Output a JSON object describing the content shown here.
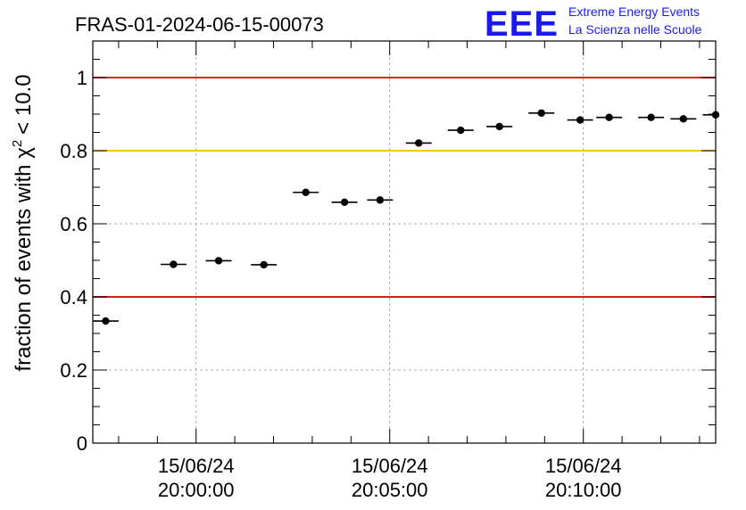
{
  "chart_data": {
    "type": "scatter",
    "title": "FRAS-01-2024-06-15-00073",
    "ylabel": "fraction of events with",
    "ylabel_chi": "χ",
    "ylabel_exp": "2",
    "ylabel_tail": "< 10.0",
    "ylim": [
      0,
      1.1
    ],
    "yticks": [
      0,
      0.2,
      0.4,
      0.6,
      0.8,
      1
    ],
    "ytick_labels": [
      "0",
      "0.2",
      "0.4",
      "0.6",
      "0.8",
      "1"
    ],
    "xlim": [
      "15/06/24 19:57:20",
      "15/06/24 20:13:25"
    ],
    "xticks": [
      {
        "x": "15/06/24 20:00:00",
        "date": "15/06/24",
        "time": "20:00:00"
      },
      {
        "x": "15/06/24 20:05:00",
        "date": "15/06/24",
        "time": "20:05:00"
      },
      {
        "x": "15/06/24 20:10:00",
        "date": "15/06/24",
        "time": "20:10:00"
      }
    ],
    "grid": true,
    "reference_lines": [
      {
        "y": 1.0,
        "color": "#e8191e"
      },
      {
        "y": 0.8,
        "color": "#ffc400"
      },
      {
        "y": 0.4,
        "color": "#e8191e"
      }
    ],
    "bin_width_s": 40,
    "points": [
      {
        "x": "15/06/24 19:57:40",
        "y": 0.334
      },
      {
        "x": "15/06/24 19:59:25",
        "y": 0.489
      },
      {
        "x": "15/06/24 20:00:35",
        "y": 0.499
      },
      {
        "x": "15/06/24 20:01:45",
        "y": 0.488
      },
      {
        "x": "15/06/24 20:02:50",
        "y": 0.686
      },
      {
        "x": "15/06/24 20:03:50",
        "y": 0.659
      },
      {
        "x": "15/06/24 20:04:45",
        "y": 0.665
      },
      {
        "x": "15/06/24 20:05:45",
        "y": 0.821
      },
      {
        "x": "15/06/24 20:06:50",
        "y": 0.856
      },
      {
        "x": "15/06/24 20:07:50",
        "y": 0.866
      },
      {
        "x": "15/06/24 20:08:55",
        "y": 0.903
      },
      {
        "x": "15/06/24 20:09:55",
        "y": 0.884
      },
      {
        "x": "15/06/24 20:10:40",
        "y": 0.891
      },
      {
        "x": "15/06/24 20:11:45",
        "y": 0.891
      },
      {
        "x": "15/06/24 20:12:35",
        "y": 0.887
      },
      {
        "x": "15/06/24 20:13:25",
        "y": 0.898
      }
    ]
  },
  "logo": {
    "text": "EEE",
    "line1": "Extreme Energy Events",
    "line2": "La Scienza nelle Scuole",
    "color": "#1a1aee"
  }
}
